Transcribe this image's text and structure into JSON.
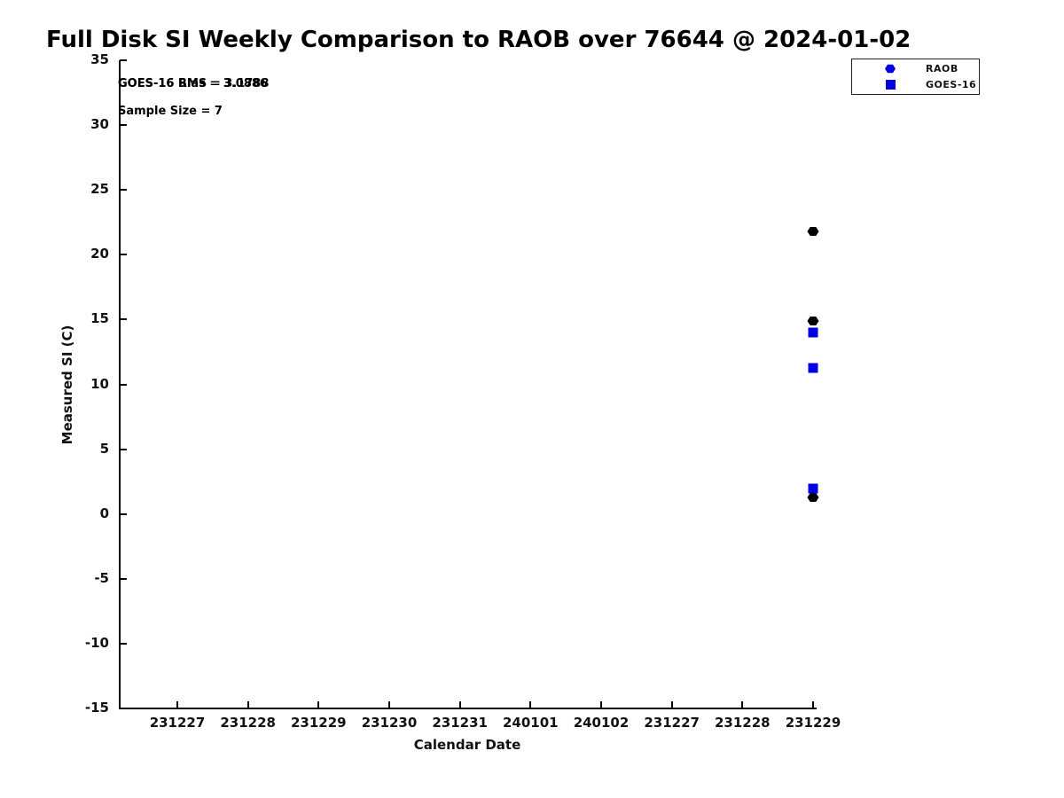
{
  "title": "Full Disk SI Weekly Comparison to RAOB over 76644 @ 2024-01-02",
  "annotations": {
    "rms_text": "GOES-16 RMS = 3.1788",
    "bias_text": "GOES-16 Bias = 3.0886",
    "sample_size_text": "Sample Size = 7"
  },
  "legend": {
    "position": "top-right",
    "items": [
      {
        "label": "RAOB",
        "marker": "hexagram-icon",
        "color": "#0000e0"
      },
      {
        "label": "GOES-16",
        "marker": "square-icon",
        "color": "#0000e0"
      }
    ]
  },
  "chart_data": {
    "type": "scatter",
    "title": "Full Disk SI Weekly Comparison to RAOB over 76644 @ 2024-01-02",
    "xlabel": "Calendar Date",
    "ylabel": "Measured SI (C)",
    "x_tick_labels": [
      "231227",
      "231228",
      "231229",
      "231230",
      "231231",
      "240101",
      "240102",
      "231227",
      "231228",
      "231229"
    ],
    "y_ticks": [
      35,
      30,
      25,
      20,
      15,
      10,
      5,
      0,
      -5,
      -10,
      -15
    ],
    "ylim": [
      -15,
      35
    ],
    "grid": false,
    "legend_entries": [
      "RAOB",
      "GOES-16"
    ],
    "series": [
      {
        "name": "RAOB",
        "marker": "hexagram",
        "color": "#000000",
        "x_tick_index": 9,
        "x_tick_label": "231229",
        "values": [
          21.8,
          14.9,
          1.3
        ]
      },
      {
        "name": "GOES-16",
        "marker": "square",
        "color": "#0000e0",
        "x_tick_index": 9,
        "x_tick_label": "231229",
        "values": [
          14.0,
          11.3,
          2.0
        ]
      }
    ]
  }
}
